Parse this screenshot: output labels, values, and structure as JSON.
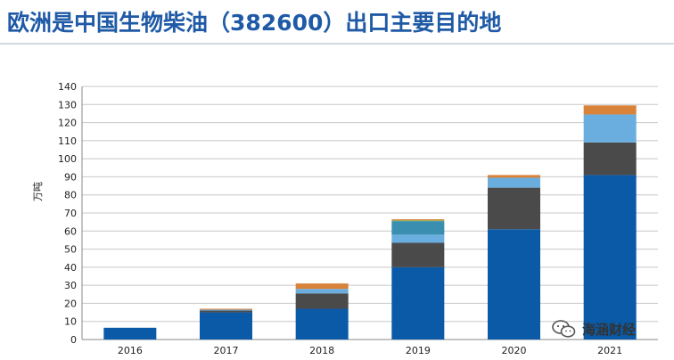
{
  "title": "欧洲是中国生物柴油（382600）出口主要目的地",
  "watermark": "海涵财经",
  "chart_data": {
    "type": "bar",
    "stacked": true,
    "categories": [
      "2016",
      "2017",
      "2018",
      "2019",
      "2020",
      "2021"
    ],
    "ylabel": "万吨",
    "ylim": [
      0,
      140
    ],
    "yticks": [
      0,
      10,
      20,
      30,
      40,
      50,
      60,
      70,
      80,
      90,
      100,
      110,
      120,
      130,
      140
    ],
    "grid": true,
    "series": [
      {
        "color": "#0a5aa8",
        "values": [
          6.5,
          15,
          17,
          40,
          61,
          91
        ]
      },
      {
        "color": "#4a4a4a",
        "values": [
          0,
          1,
          8.5,
          13.5,
          23,
          18
        ]
      },
      {
        "color": "#6aaee0",
        "values": [
          0,
          0.5,
          2.5,
          4.5,
          5.5,
          15.5
        ]
      },
      {
        "color": "#3a8fb0",
        "values": [
          0,
          0,
          0,
          7.5,
          0,
          0
        ]
      },
      {
        "color": "#8fa83a",
        "values": [
          0,
          0,
          0,
          0.5,
          0,
          0
        ]
      },
      {
        "color": "#d9823a",
        "values": [
          0,
          0.5,
          3,
          0.5,
          1.5,
          5
        ]
      }
    ]
  }
}
